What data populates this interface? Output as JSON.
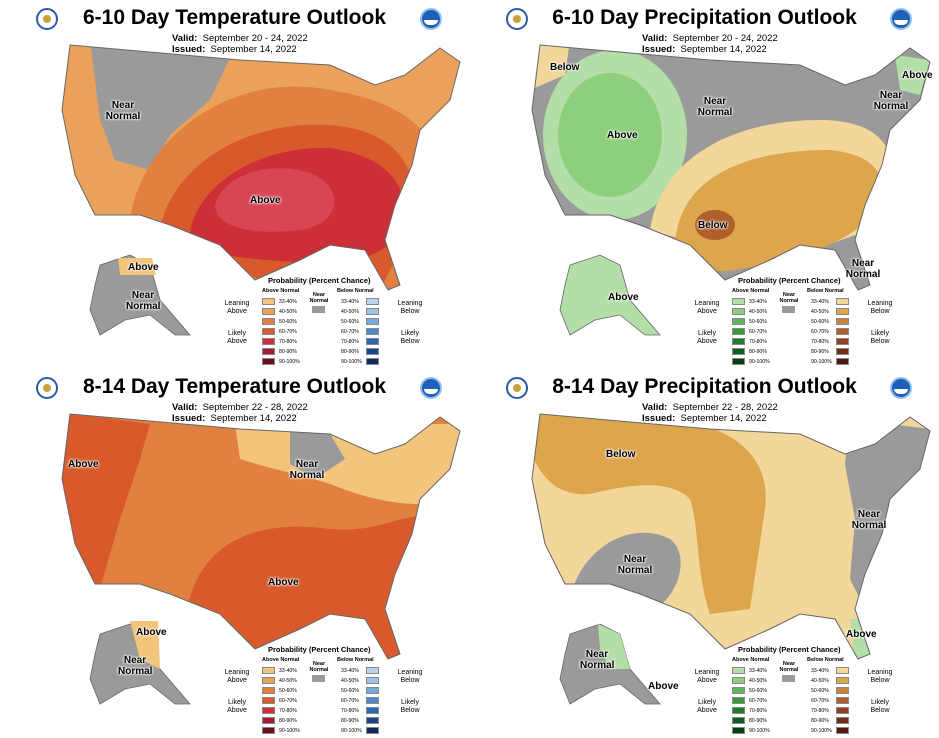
{
  "colors": {
    "near_normal": "#9a9a9a",
    "above_temp": [
      "#f2c47c",
      "#eaa25a",
      "#e2813f",
      "#d85a2c",
      "#cc2f35",
      "#a51c30",
      "#6b0f1a"
    ],
    "below_temp": [
      "#bcd3ee",
      "#9ec2e8",
      "#78aadd",
      "#4f8bcc",
      "#2c67b3",
      "#1a468e",
      "#0d2a5c"
    ],
    "above_precip": [
      "#b3dea8",
      "#8dcf7d",
      "#5fb857",
      "#369c3a",
      "#1e7f2b",
      "#0f5e1e",
      "#063d12"
    ],
    "below_precip": [
      "#f2d69a",
      "#dda54c",
      "#c8843a",
      "#b05e2c",
      "#8f4322",
      "#6e2e17",
      "#4a1c0d"
    ]
  },
  "legend": {
    "title": "Probability (Percent Chance)",
    "above_normal": "Above Normal",
    "below_normal": "Below Normal",
    "near_normal": "Near Normal",
    "ranges": [
      "33-40%",
      "40-50%",
      "50-60%",
      "60-70%",
      "70-80%",
      "80-90%",
      "90-100%"
    ],
    "leaning_above": "Leaning Above",
    "likely_above": "Likely Above",
    "leaning_below": "Leaning Below",
    "likely_below": "Likely Below"
  },
  "panels": [
    {
      "title": "6-10 Day Temperature Outlook",
      "valid_label": "Valid:",
      "valid": "September 20 - 24, 2022",
      "issued_label": "Issued:",
      "issued": "September 14, 2022",
      "labels": [
        "Near Normal",
        "Above",
        "Above",
        "Near Normal"
      ]
    },
    {
      "title": "6-10 Day Precipitation Outlook",
      "valid_label": "Valid:",
      "valid": "September 20 - 24, 2022",
      "issued_label": "Issued:",
      "issued": "September 14, 2022",
      "labels": [
        "Below",
        "Above",
        "Near Normal",
        "Above",
        "Near Normal",
        "Below",
        "Near Normal",
        "Above"
      ]
    },
    {
      "title": "8-14 Day Temperature Outlook",
      "valid_label": "Valid:",
      "valid": "September 22 - 28, 2022",
      "issued_label": "Issued:",
      "issued": "September 14, 2022",
      "labels": [
        "Above",
        "Near Normal",
        "Above",
        "Above",
        "Near Normal"
      ]
    },
    {
      "title": "8-14 Day Precipitation Outlook",
      "valid_label": "Valid:",
      "valid": "September 22 - 28, 2022",
      "issued_label": "Issued:",
      "issued": "September 14, 2022",
      "labels": [
        "Below",
        "Near Normal",
        "Near Normal",
        "Above",
        "Near Normal",
        "Above"
      ]
    }
  ]
}
